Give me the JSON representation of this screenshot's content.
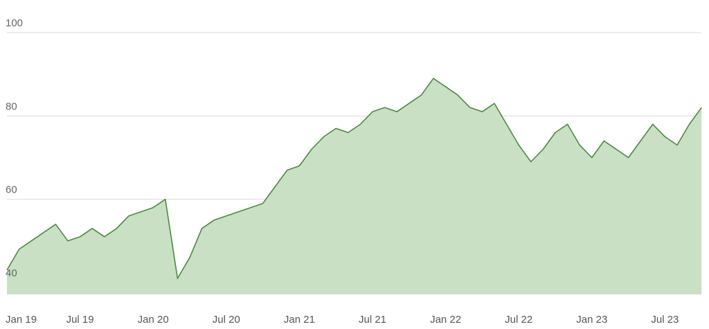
{
  "chart_data": {
    "type": "area",
    "title": "",
    "xlabel": "",
    "ylabel": "",
    "x_tick_labels": [
      "Jan 19",
      "Jul 19",
      "Jan 20",
      "Jul 20",
      "Jan 21",
      "Jul 21",
      "Jan 22",
      "Jul 22",
      "Jan 23",
      "Jul 23"
    ],
    "x_tick_dates": [
      "2019-01",
      "2019-07",
      "2020-01",
      "2020-07",
      "2021-01",
      "2021-07",
      "2022-01",
      "2022-07",
      "2023-01",
      "2023-07"
    ],
    "y_ticks": [
      40,
      60,
      80,
      100
    ],
    "y_tick_labels": [
      "40",
      "60",
      "80",
      "100"
    ],
    "ylim": [
      37.5,
      100
    ],
    "xlim": [
      "2019-01",
      "2023-10"
    ],
    "grid": true,
    "colors": {
      "line": "#4a8a3f",
      "fill": "#c9e0c5",
      "grid": "#d9d9d9"
    },
    "series": [
      {
        "x": [
          "2019-01",
          "2019-02",
          "2019-03",
          "2019-04",
          "2019-05",
          "2019-06",
          "2019-07",
          "2019-08",
          "2019-09",
          "2019-10",
          "2019-11",
          "2019-12",
          "2020-01",
          "2020-02",
          "2020-03",
          "2020-04",
          "2020-05",
          "2020-06",
          "2020-07",
          "2020-08",
          "2020-09",
          "2020-10",
          "2020-11",
          "2020-12",
          "2021-01",
          "2021-02",
          "2021-03",
          "2021-04",
          "2021-05",
          "2021-06",
          "2021-07",
          "2021-08",
          "2021-09",
          "2021-10",
          "2021-11",
          "2021-12",
          "2022-01",
          "2022-02",
          "2022-03",
          "2022-04",
          "2022-05",
          "2022-06",
          "2022-07",
          "2022-08",
          "2022-09",
          "2022-10",
          "2022-11",
          "2022-12",
          "2023-01",
          "2023-02",
          "2023-03",
          "2023-04",
          "2023-05",
          "2023-06",
          "2023-07",
          "2023-08",
          "2023-09",
          "2023-10"
        ],
        "values": [
          43,
          48,
          50,
          52,
          54,
          50,
          51,
          53,
          51,
          53,
          56,
          57,
          58,
          60,
          41,
          46,
          53,
          55,
          56,
          57,
          58,
          59,
          63,
          67,
          68,
          72,
          75,
          77,
          76,
          78,
          81,
          82,
          81,
          83,
          85,
          89,
          87,
          85,
          82,
          81,
          83,
          78,
          73,
          69,
          72,
          76,
          78,
          73,
          70,
          74,
          72,
          70,
          74,
          78,
          75,
          73,
          78,
          82
        ]
      }
    ]
  }
}
